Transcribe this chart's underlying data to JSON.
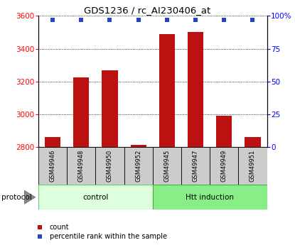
{
  "title": "GDS1236 / rc_AI230406_at",
  "samples": [
    "GSM49946",
    "GSM49948",
    "GSM49950",
    "GSM49952",
    "GSM49945",
    "GSM49947",
    "GSM49949",
    "GSM49951"
  ],
  "counts": [
    2860,
    3225,
    3270,
    2815,
    3490,
    3500,
    2990,
    2860
  ],
  "percentile_ranks": [
    97,
    97,
    97,
    97,
    97,
    97,
    97,
    97
  ],
  "bar_color": "#bb1111",
  "marker_color": "#2244cc",
  "ylim_left": [
    2800,
    3600
  ],
  "ylim_right": [
    0,
    100
  ],
  "yticks_left": [
    2800,
    3000,
    3200,
    3400,
    3600
  ],
  "yticks_right": [
    0,
    25,
    50,
    75,
    100
  ],
  "ylabel_right_labels": [
    "0",
    "25",
    "50",
    "75",
    "100%"
  ],
  "background_color": "#ffffff",
  "label_box_color": "#cccccc",
  "bar_width": 0.55,
  "control_color_light": "#ddffdd",
  "control_color_dark": "#66cc66",
  "htt_color_light": "#88ee88",
  "htt_color_dark": "#44aa44",
  "n_control": 4,
  "n_htt": 4
}
